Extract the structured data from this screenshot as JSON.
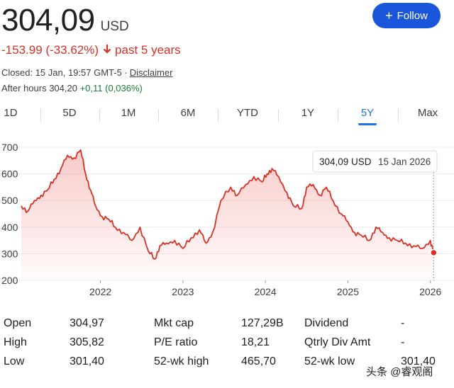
{
  "quote": {
    "price": "304,09",
    "currency": "USD",
    "change": "-153.99 (-33.62%)",
    "period": "past 5 years",
    "closed_text": "Closed: 15 Jan, 19:57 GMT-5 ·",
    "disclaimer": "Disclaimer",
    "after_hours_label": "After hours 304,20",
    "after_hours_change": "+0,11 (0,036%)"
  },
  "follow_button": {
    "label": "Follow"
  },
  "tabs": [
    {
      "label": "1D"
    },
    {
      "label": "5D"
    },
    {
      "label": "1M"
    },
    {
      "label": "6M"
    },
    {
      "label": "YTD"
    },
    {
      "label": "1Y"
    },
    {
      "label": "5Y",
      "active": true
    },
    {
      "label": "Max"
    }
  ],
  "tooltip": {
    "price": "304,09 USD",
    "date": "15 Jan 2026"
  },
  "chart_data": {
    "type": "area",
    "color": "#d93025",
    "yticks": [
      "700",
      "600",
      "500",
      "400",
      "300",
      "200"
    ],
    "ylim": [
      200,
      700
    ],
    "xticks": [
      "2022",
      "2023",
      "2024",
      "2025",
      "2026"
    ],
    "xlim": [
      2021.04,
      2026.08
    ],
    "x": [
      2021.04,
      2021.12,
      2021.2,
      2021.28,
      2021.36,
      2021.44,
      2021.52,
      2021.6,
      2021.68,
      2021.76,
      2021.82,
      2021.88,
      2021.94,
      2022.02,
      2022.1,
      2022.18,
      2022.28,
      2022.38,
      2022.48,
      2022.58,
      2022.66,
      2022.72,
      2022.8,
      2022.9,
      2023.0,
      2023.1,
      2023.2,
      2023.28,
      2023.36,
      2023.46,
      2023.58,
      2023.66,
      2023.76,
      2023.86,
      2023.96,
      2024.02,
      2024.08,
      2024.16,
      2024.26,
      2024.34,
      2024.44,
      2024.5,
      2024.58,
      2024.66,
      2024.74,
      2024.82,
      2024.92,
      2025.0,
      2025.08,
      2025.16,
      2025.26,
      2025.34,
      2025.42,
      2025.5,
      2025.6,
      2025.7,
      2025.8,
      2025.9,
      2026.0,
      2026.04
    ],
    "values": [
      480,
      460,
      500,
      520,
      540,
      580,
      620,
      670,
      660,
      690,
      600,
      540,
      480,
      440,
      430,
      400,
      380,
      350,
      400,
      310,
      280,
      330,
      340,
      350,
      320,
      360,
      390,
      340,
      380,
      500,
      550,
      520,
      560,
      590,
      570,
      600,
      620,
      590,
      530,
      480,
      470,
      550,
      560,
      520,
      550,
      500,
      450,
      420,
      380,
      370,
      350,
      400,
      380,
      360,
      350,
      340,
      330,
      320,
      350,
      304.09
    ]
  },
  "stats": [
    [
      {
        "label": "Open",
        "value": "304,97"
      },
      {
        "label": "Mkt cap",
        "value": "127,29B"
      },
      {
        "label": "Dividend",
        "value": "-"
      }
    ],
    [
      {
        "label": "High",
        "value": "305,82"
      },
      {
        "label": "P/E ratio",
        "value": "18,21"
      },
      {
        "label": "Qtrly Div Amt",
        "value": "-"
      }
    ],
    [
      {
        "label": "Low",
        "value": "301,40"
      },
      {
        "label": "52-wk high",
        "value": "465,70"
      },
      {
        "label": "52-wk low",
        "value": "301,40"
      }
    ]
  ],
  "watermark": "头条 @睿观阁"
}
